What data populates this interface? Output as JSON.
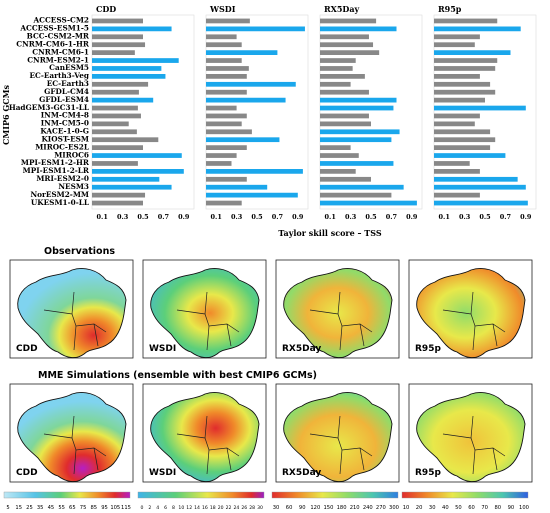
{
  "models": [
    "ACCESS-CM2",
    "ACCESS-ESM1-5",
    "BCC-CSM2-MR",
    "CNRM-CM6-1-HR",
    "CNRM-CM6-1",
    "CNRM-ESM2-1",
    "CanESM5",
    "EC-Earth3-Veg",
    "EC-Earth3",
    "GFDL-CM4",
    "GFDL-ESM4",
    "HadGEM3-GC31-LL",
    "INM-CM4-8",
    "INM-CM5-0",
    "KACE-1-0-G",
    "KIOST-ESM",
    "MIROC-ES2L",
    "MIROC6",
    "MPI-ESM1-2-HR",
    "MPI-ESM1-2-LR",
    "MRI-ESM2-0",
    "NESM3",
    "NorESM2-MM",
    "UKESM1-0-LL"
  ],
  "y_axis_label": "CMIP6 GCMs",
  "x_axis_label": "Taylor skill score – TSS",
  "tick_labels": [
    "0.1",
    "0.3",
    "0.5",
    "0.7",
    "0.9"
  ],
  "colors": {
    "best": "#1aa7ec",
    "other": "#888888"
  },
  "chart_data": {
    "type": "bar",
    "xlim": [
      0,
      1
    ],
    "panels": [
      {
        "title": "CDD",
        "values": [
          0.5,
          0.78,
          0.5,
          0.52,
          0.42,
          0.85,
          0.68,
          0.72,
          0.55,
          0.46,
          0.6,
          0.45,
          0.48,
          0.36,
          0.44,
          0.65,
          0.5,
          0.88,
          0.45,
          0.9,
          0.66,
          0.78,
          0.52,
          0.5
        ],
        "best": [
          0,
          1,
          0,
          0,
          0,
          1,
          1,
          1,
          0,
          0,
          1,
          0,
          0,
          0,
          0,
          0,
          0,
          1,
          0,
          1,
          1,
          1,
          0,
          0
        ]
      },
      {
        "title": "WSDI",
        "values": [
          0.43,
          0.97,
          0.3,
          0.35,
          0.7,
          0.35,
          0.42,
          0.4,
          0.88,
          0.4,
          0.78,
          0.3,
          0.4,
          0.35,
          0.45,
          0.72,
          0.4,
          0.3,
          0.25,
          0.95,
          0.4,
          0.6,
          0.9,
          0.35
        ],
        "best": [
          0,
          1,
          0,
          0,
          1,
          0,
          0,
          0,
          1,
          0,
          1,
          0,
          0,
          0,
          0,
          1,
          0,
          0,
          0,
          1,
          0,
          1,
          1,
          0
        ]
      },
      {
        "title": "RX5Day",
        "values": [
          0.55,
          0.75,
          0.48,
          0.52,
          0.58,
          0.35,
          0.32,
          0.44,
          0.3,
          0.48,
          0.75,
          0.72,
          0.48,
          0.5,
          0.78,
          0.7,
          0.3,
          0.38,
          0.72,
          0.35,
          0.5,
          0.82,
          0.7,
          0.95
        ],
        "best": [
          0,
          1,
          0,
          0,
          0,
          0,
          0,
          0,
          0,
          0,
          1,
          1,
          0,
          0,
          1,
          1,
          0,
          0,
          1,
          0,
          0,
          1,
          0,
          1
        ]
      },
      {
        "title": "R95p",
        "values": [
          0.62,
          0.85,
          0.45,
          0.4,
          0.75,
          0.62,
          0.6,
          0.45,
          0.55,
          0.6,
          0.5,
          0.9,
          0.45,
          0.4,
          0.55,
          0.6,
          0.55,
          0.7,
          0.35,
          0.45,
          0.82,
          0.9,
          0.45,
          0.92
        ],
        "best": [
          0,
          1,
          0,
          0,
          1,
          0,
          0,
          0,
          0,
          0,
          0,
          1,
          0,
          0,
          0,
          0,
          0,
          1,
          0,
          0,
          1,
          1,
          0,
          1
        ]
      }
    ]
  },
  "maps": {
    "obs_heading": "Observations",
    "mme_heading": "MME Simulations (ensemble with best CMIP6 GCMs)",
    "index_labels": [
      "CDD",
      "WSDI",
      "RX5Day",
      "R95p"
    ],
    "colorbars": [
      {
        "ticks": [
          "5",
          "15",
          "25",
          "35",
          "45",
          "55",
          "65",
          "75",
          "85",
          "95",
          "105",
          "115"
        ]
      },
      {
        "ticks": [
          "0",
          "2",
          "4",
          "6",
          "8",
          "10",
          "12",
          "14",
          "16",
          "18",
          "20",
          "22",
          "24",
          "26",
          "28",
          "30"
        ]
      },
      {
        "ticks": [
          "30",
          "60",
          "90",
          "120",
          "150",
          "180",
          "210",
          "240",
          "270",
          "300"
        ]
      },
      {
        "ticks": [
          "10",
          "20",
          "30",
          "40",
          "50",
          "60",
          "70",
          "80",
          "90",
          "100"
        ]
      }
    ]
  }
}
